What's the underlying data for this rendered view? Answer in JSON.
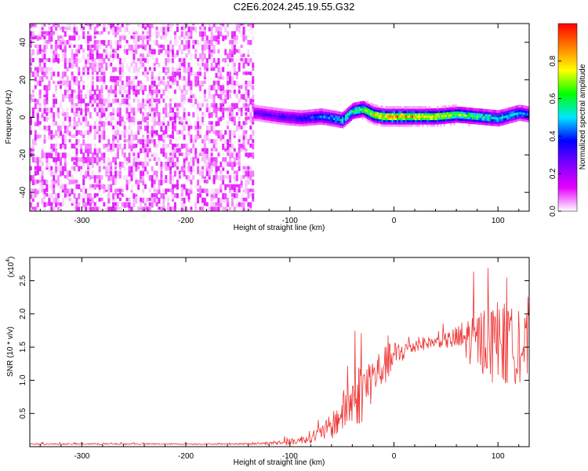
{
  "figure_title": "C2E6.2024.245.19.55.G32",
  "chart_data": [
    {
      "type": "heatmap",
      "xlabel": "Height of straight line (km)",
      "ylabel": "Frequency (Hz)",
      "xlim": [
        -350,
        130
      ],
      "ylim": [
        -50,
        50
      ],
      "x_ticks": [
        -300,
        -200,
        -100,
        0,
        100
      ],
      "x_tick_labels": [
        "-300",
        "-200",
        "-100",
        "0",
        "100"
      ],
      "y_ticks": [
        -40,
        -20,
        0,
        20,
        40
      ],
      "y_tick_labels": [
        "-40",
        "-20",
        "0",
        "20",
        "40"
      ],
      "colorbar": {
        "label": "Normalized spectral amplitude",
        "range": [
          0,
          1
        ],
        "ticks": [
          0,
          0.2,
          0.4,
          0.6,
          0.8
        ],
        "tick_labels": [
          "0.0",
          "0.2",
          "0.4",
          "0.6",
          "0.8"
        ],
        "colors": [
          "#ffffff",
          "#e600ff",
          "#8000ff",
          "#0000ff",
          "#00e6ff",
          "#00ff00",
          "#ffff00",
          "#ff8000",
          "#ff0000"
        ]
      },
      "regions": [
        {
          "x_range": [
            -350,
            -135
          ],
          "freq_range": [
            -50,
            50
          ],
          "amplitude": [
            0.0,
            0.15
          ]
        },
        {
          "x_range": [
            -135,
            130
          ],
          "freq_center": 0,
          "freq_halfwidth": 6,
          "amplitude": [
            0.1,
            1.0
          ]
        }
      ],
      "ridge": {
        "x": [
          -135,
          -110,
          -90,
          -70,
          -50,
          -40,
          -30,
          -20,
          -10,
          0,
          20,
          40,
          60,
          80,
          100,
          120,
          130
        ],
        "freq": [
          2,
          0,
          -1,
          0,
          -2,
          3,
          4,
          1,
          0,
          0,
          0,
          0,
          1,
          0,
          -1,
          2,
          1
        ],
        "amplitude": [
          0.3,
          0.35,
          0.4,
          0.5,
          0.6,
          0.7,
          0.75,
          0.9,
          0.95,
          1.0,
          0.95,
          0.9,
          0.8,
          0.7,
          0.6,
          0.55,
          0.5
        ]
      }
    },
    {
      "type": "line",
      "xlabel": "Height of straight line (km)",
      "ylabel": "SNR (10 * v/v)",
      "y_multiplier": "(x10",
      "y_multiplier_exp": "4",
      "y_multiplier_close": ")",
      "xlim": [
        -350,
        130
      ],
      "ylim": [
        0,
        2.85
      ],
      "x_ticks": [
        -300,
        -200,
        -100,
        0,
        100
      ],
      "x_tick_labels": [
        "-300",
        "-200",
        "-100",
        "0",
        "100"
      ],
      "y_ticks": [
        0.5,
        1.0,
        1.5,
        2.0,
        2.5
      ],
      "y_tick_labels": [
        "0.5",
        "1.0",
        "1.5",
        "2.0",
        "2.5"
      ],
      "color": "#ee3333",
      "series": [
        {
          "x": [
            -350,
            -300,
            -250,
            -200,
            -150,
            -120,
            -100,
            -90,
            -80,
            -70,
            -60,
            -50,
            -40,
            -30,
            -20,
            -10,
            0,
            10,
            20,
            30,
            40,
            50,
            60,
            70,
            80,
            90,
            100,
            110,
            120,
            130
          ],
          "y": [
            0.04,
            0.04,
            0.04,
            0.04,
            0.04,
            0.05,
            0.07,
            0.1,
            0.15,
            0.2,
            0.3,
            0.5,
            0.7,
            0.85,
            1.05,
            1.2,
            1.35,
            1.45,
            1.52,
            1.56,
            1.58,
            1.6,
            1.62,
            1.62,
            1.6,
            1.58,
            1.55,
            1.52,
            1.5,
            1.48
          ],
          "noise": [
            0.01,
            0.01,
            0.01,
            0.01,
            0.01,
            0.02,
            0.05,
            0.06,
            0.1,
            0.12,
            0.2,
            0.3,
            0.45,
            0.5,
            0.35,
            0.3,
            0.25,
            0.15,
            0.12,
            0.1,
            0.08,
            0.12,
            0.2,
            0.35,
            0.45,
            0.55,
            0.7,
            0.6,
            0.55,
            0.5
          ]
        }
      ]
    }
  ]
}
